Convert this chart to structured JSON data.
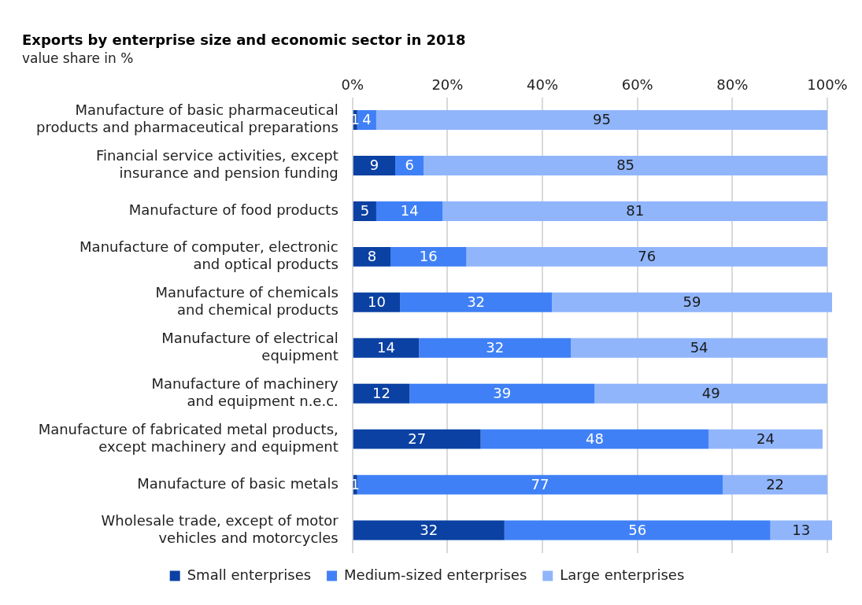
{
  "chart_data": {
    "type": "bar",
    "orientation": "horizontal",
    "stacked": true,
    "title": "Exports by enterprise size and economic sector in 2018",
    "subtitle": "value share in %",
    "categories": [
      "Manufacture of basic pharmaceutical\nproducts and pharmaceutical preparations",
      "Financial service activities, except\ninsurance and pension funding",
      "Manufacture of food products",
      "Manufacture of computer, electronic\nand optical products",
      "Manufacture of chemicals\nand chemical products",
      "Manufacture of electrical\nequipment",
      "Manufacture of machinery\nand equipment n.e.c.",
      "Manufacture of fabricated metal products,\nexcept machinery and equipment",
      "Manufacture of basic metals",
      "Wholesale trade, except of motor\nvehicles and motorcycles"
    ],
    "series": [
      {
        "name": "Small enterprises",
        "color": "#0b41a3",
        "values": [
          1,
          9,
          5,
          8,
          10,
          14,
          12,
          27,
          1,
          32
        ]
      },
      {
        "name": "Medium-sized enterprises",
        "color": "#3f80f6",
        "values": [
          4,
          6,
          14,
          16,
          32,
          32,
          39,
          48,
          77,
          56
        ]
      },
      {
        "name": "Large enterprises",
        "color": "#90b5fb",
        "values": [
          95,
          85,
          81,
          76,
          59,
          54,
          49,
          24,
          22,
          13
        ]
      }
    ],
    "xlim": [
      0,
      101
    ],
    "xticks": [
      {
        "value": 0,
        "label": "0%"
      },
      {
        "value": 20,
        "label": "20%"
      },
      {
        "value": 40,
        "label": "40%"
      },
      {
        "value": 60,
        "label": "60%"
      },
      {
        "value": 80,
        "label": "80%"
      },
      {
        "value": 100,
        "label": "100%"
      }
    ],
    "grid": "x",
    "legend": "bottom",
    "data_labels": true
  }
}
